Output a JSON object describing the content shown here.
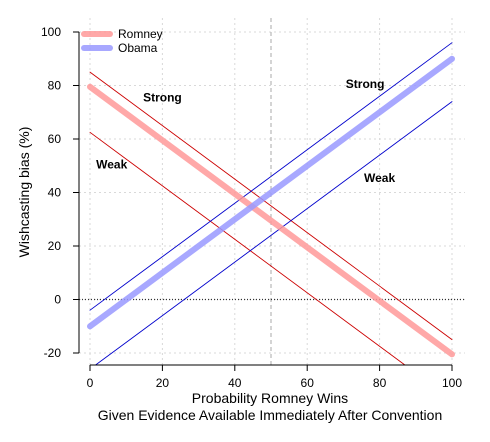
{
  "chart_data": {
    "type": "line",
    "xlabel": [
      "Probability Romney Wins",
      "Given Evidence Available Immediately After Convention"
    ],
    "ylabel": "Wishcasting bias (%)",
    "xlim": [
      0,
      100
    ],
    "ylim": [
      -20,
      100
    ],
    "xticks": [
      "0",
      "20",
      "40",
      "60",
      "80",
      "100"
    ],
    "yticks": [
      "-20",
      "0",
      "20",
      "40",
      "60",
      "80",
      "100"
    ],
    "grid": true,
    "legend_position": "top-left",
    "series": [
      {
        "name": "Romney",
        "color": "#ff9999",
        "style": "thick",
        "x": [
          0,
          100
        ],
        "y": [
          79.5,
          -20.5
        ]
      },
      {
        "name": "Obama",
        "color": "#9999ff",
        "style": "thick",
        "x": [
          0,
          100
        ],
        "y": [
          -10,
          90
        ]
      },
      {
        "color": "#cc0000",
        "style": "thin",
        "x": [
          0,
          100
        ],
        "y": [
          85,
          -15
        ]
      },
      {
        "color": "#cc0000",
        "style": "thin",
        "x": [
          0,
          100
        ],
        "y": [
          62.5,
          -37.5
        ]
      },
      {
        "color": "#0000cc",
        "style": "thin",
        "x": [
          0,
          100
        ],
        "y": [
          -4,
          96
        ]
      },
      {
        "color": "#0000cc",
        "style": "thin",
        "x": [
          0,
          100
        ],
        "y": [
          -26,
          74
        ]
      }
    ],
    "reference_lines": [
      {
        "orientation": "vertical",
        "value": 50,
        "style": "dashed",
        "color": "#aaaaaa"
      },
      {
        "orientation": "horizontal",
        "value": 0,
        "style": "dotted",
        "color": "#333333"
      }
    ],
    "annotations": [
      {
        "text": "Strong",
        "x": 20,
        "y": 74
      },
      {
        "text": "Weak",
        "x": 6,
        "y": 49
      },
      {
        "text": "Strong",
        "x": 76,
        "y": 79
      },
      {
        "text": "Weak",
        "x": 80,
        "y": 44
      }
    ]
  }
}
